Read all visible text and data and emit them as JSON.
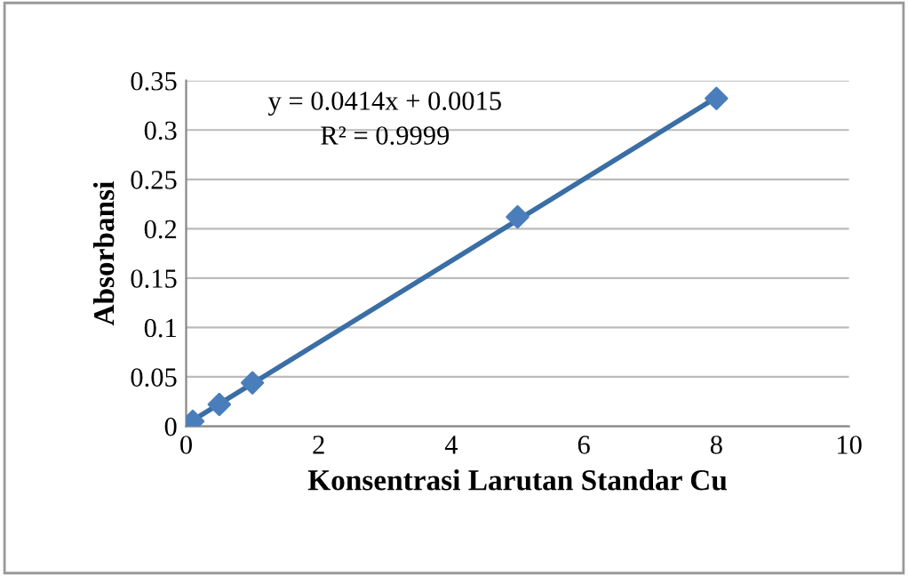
{
  "chart_data": {
    "type": "scatter",
    "xlabel": "Konsentrasi Larutan Standar Cu",
    "ylabel": "Absorbansi",
    "annotations": [
      "y = 0.0414x + 0.0015",
      "R² = 0.9999"
    ],
    "series": [
      {
        "color": "#4a7ebb",
        "marker": "diamond",
        "x": [
          0.1,
          0.5,
          1,
          5,
          8
        ],
        "values": [
          0.005,
          0.022,
          0.044,
          0.212,
          0.332
        ]
      },
      {
        "type": "line",
        "color": "#3a6ea5",
        "marker": "none",
        "line_style": "solid",
        "x": [
          0.1,
          8
        ],
        "values": [
          0.006,
          0.333
        ]
      }
    ],
    "xlim": [
      0,
      10
    ],
    "xticks": [
      0,
      2,
      4,
      6,
      8,
      10
    ],
    "ylim": [
      0,
      0.35
    ],
    "yticks": [
      0,
      0.05,
      0.1,
      0.15,
      0.2,
      0.25,
      0.3,
      0.35
    ],
    "grid": "y"
  }
}
